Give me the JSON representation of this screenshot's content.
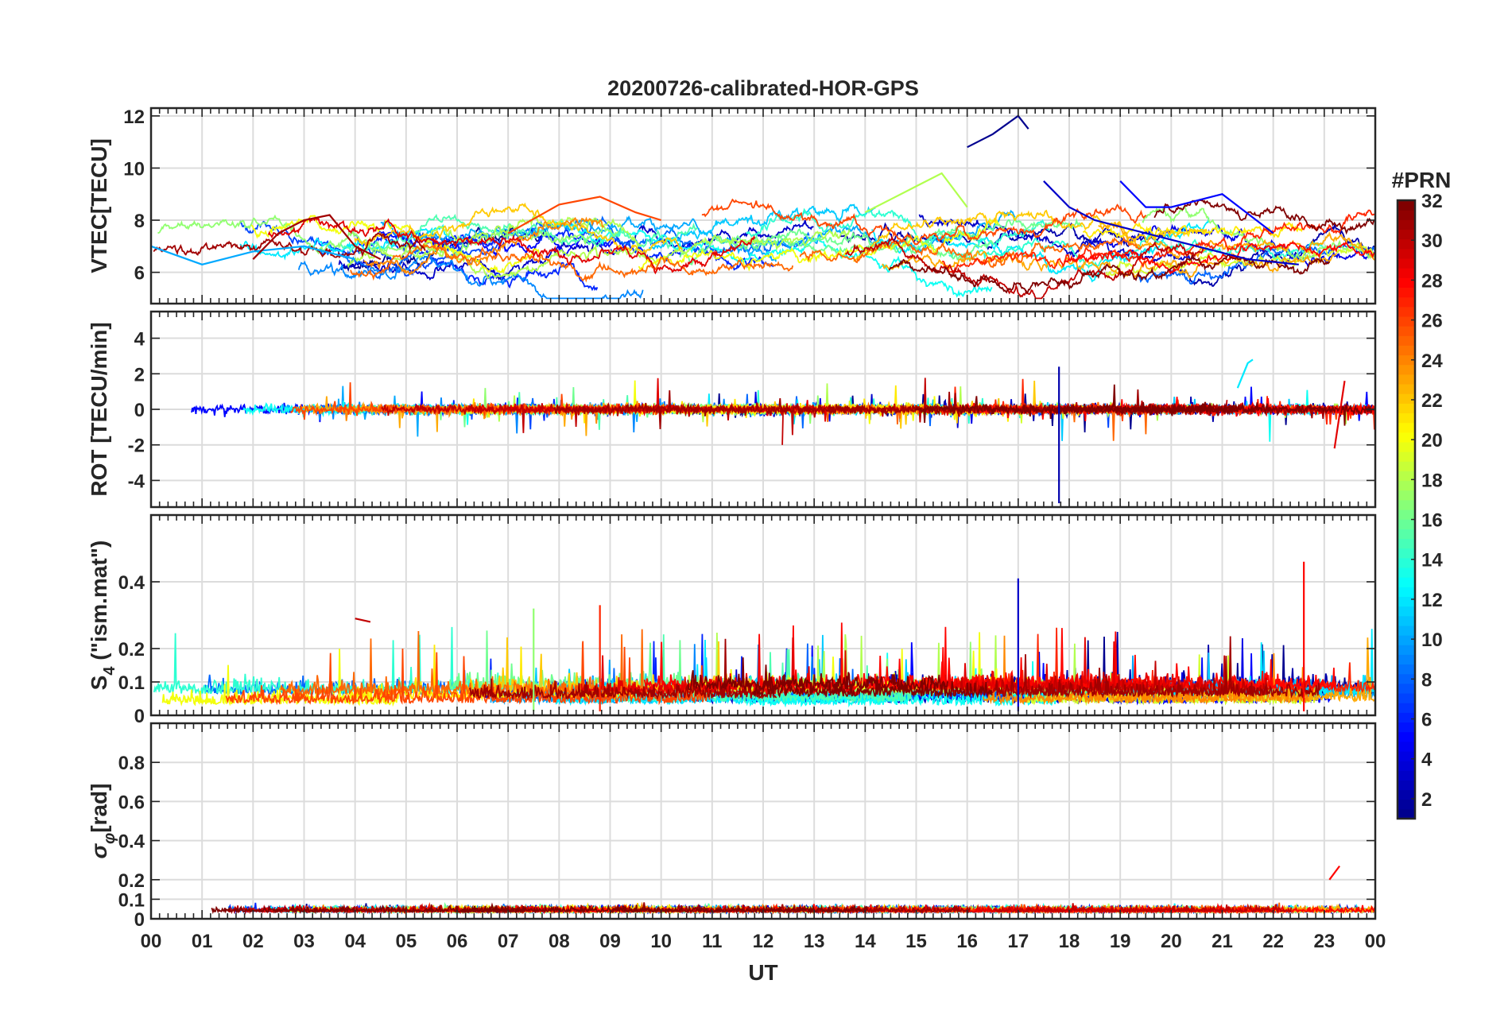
{
  "figure": {
    "title": "20200726-calibrated-HOR-GPS",
    "x_axis_label": "UT",
    "x_tick_labels": [
      "00",
      "01",
      "02",
      "03",
      "04",
      "05",
      "06",
      "07",
      "08",
      "09",
      "10",
      "11",
      "12",
      "13",
      "14",
      "15",
      "16",
      "17",
      "18",
      "19",
      "20",
      "21",
      "22",
      "23",
      "00"
    ]
  },
  "colorbar": {
    "title": "#PRN",
    "tick_labels": [
      "2",
      "4",
      "6",
      "8",
      "10",
      "12",
      "14",
      "16",
      "18",
      "20",
      "22",
      "24",
      "26",
      "28",
      "30",
      "32"
    ],
    "range": [
      1,
      32
    ],
    "colormap": "jet",
    "colors": [
      "#00008f",
      "#0000ff",
      "#0080ff",
      "#00ffff",
      "#80ff80",
      "#ffff00",
      "#ff8000",
      "#ff0000",
      "#800000"
    ]
  },
  "chart_data": [
    {
      "type": "line",
      "panel": "vtec",
      "ylabel": "VTEC[TECU]",
      "xlim": [
        0,
        24
      ],
      "ylim": [
        4.8,
        12.3
      ],
      "y_ticks": [
        6,
        8,
        10,
        12
      ],
      "y_tick_labels": [
        "6",
        "8",
        "10",
        "12"
      ],
      "grid": true,
      "series_count_note": "32 PRN colored lines",
      "summary_points": [
        {
          "prn": 1,
          "x": [
            16.0,
            16.5,
            17.0,
            17.2
          ],
          "y": [
            10.8,
            11.3,
            12.0,
            11.5
          ]
        },
        {
          "prn": 3,
          "x": [
            17.5,
            18.0,
            18.5,
            19.5,
            20.5,
            21.5,
            22.5
          ],
          "y": [
            9.5,
            8.5,
            8.0,
            7.5,
            7.0,
            6.5,
            6.3
          ]
        },
        {
          "prn": 5,
          "x": [
            19.0,
            19.5,
            20.0,
            21.0,
            22.0
          ],
          "y": [
            9.5,
            8.5,
            8.5,
            9.0,
            7.5
          ]
        },
        {
          "prn": 10,
          "x": [
            0.0,
            1.0,
            2.0,
            3.0,
            4.0
          ],
          "y": [
            7.0,
            6.3,
            6.8,
            7.0,
            6.5
          ]
        },
        {
          "prn": 18,
          "x": [
            14.0,
            14.5,
            15.0,
            15.5,
            16.0
          ],
          "y": [
            8.3,
            8.8,
            9.3,
            9.8,
            8.5
          ]
        },
        {
          "prn": 26,
          "x": [
            7.0,
            8.0,
            8.8,
            9.5,
            10.0
          ],
          "y": [
            7.5,
            8.6,
            8.9,
            8.3,
            8.0
          ]
        },
        {
          "prn": 31,
          "x": [
            2.0,
            2.5,
            3.0,
            3.5,
            4.0,
            4.5
          ],
          "y": [
            6.5,
            7.5,
            8.0,
            8.2,
            7.0,
            6.5
          ]
        }
      ]
    },
    {
      "type": "line",
      "panel": "rot",
      "ylabel": "ROT [TECU/min]",
      "xlim": [
        0,
        24
      ],
      "ylim": [
        -5.5,
        5.5
      ],
      "y_ticks": [
        -4,
        -2,
        0,
        2,
        4
      ],
      "y_tick_labels": [
        "-4",
        "-2",
        "0",
        "2",
        "4"
      ],
      "grid": true,
      "summary_points": [
        {
          "prn": 2,
          "x": [
            17.8
          ],
          "y": [
            2.4
          ]
        },
        {
          "prn": 12,
          "x": [
            21.3,
            21.5,
            21.6
          ],
          "y": [
            1.2,
            2.6,
            2.8
          ]
        },
        {
          "prn": 29,
          "x": [
            23.2,
            23.4
          ],
          "y": [
            -2.2,
            1.6
          ]
        }
      ]
    },
    {
      "type": "line",
      "panel": "s4",
      "ylabel": "S4 (\"ism.mat\")",
      "ylabel_main": "S",
      "ylabel_sub": "4",
      "ylabel_rest": " (\"ism.mat\")",
      "xlim": [
        0,
        24
      ],
      "ylim": [
        0,
        0.6
      ],
      "y_ticks": [
        0,
        0.1,
        0.2,
        0.4
      ],
      "y_tick_labels": [
        "0",
        "0.1",
        "0.2",
        "0.4"
      ],
      "grid": true,
      "summary_points": [
        {
          "prn": 3,
          "x": [
            17.0
          ],
          "y": [
            0.41
          ]
        },
        {
          "prn": 28,
          "x": [
            22.6
          ],
          "y": [
            0.46
          ]
        },
        {
          "prn": 30,
          "x": [
            4.0,
            4.3
          ],
          "y": [
            0.29,
            0.28
          ]
        },
        {
          "prn": 27,
          "x": [
            8.8
          ],
          "y": [
            0.33
          ]
        },
        {
          "prn": 17,
          "x": [
            7.5
          ],
          "y": [
            0.32
          ]
        }
      ]
    },
    {
      "type": "line",
      "panel": "sigma_phi",
      "ylabel": "σφ[rad]",
      "ylabel_main": "σ",
      "ylabel_sub": "φ",
      "ylabel_rest": "[rad]",
      "xlim": [
        0,
        24
      ],
      "ylim": [
        0,
        1.0
      ],
      "y_ticks": [
        0,
        0.1,
        0.2,
        0.4,
        0.6,
        0.8
      ],
      "y_tick_labels": [
        "0",
        "0.1",
        "0.2",
        "0.4",
        "0.6",
        "0.8"
      ],
      "grid": true,
      "summary_points": [
        {
          "prn": 28,
          "x": [
            23.1,
            23.3
          ],
          "y": [
            0.2,
            0.27
          ]
        }
      ]
    }
  ]
}
